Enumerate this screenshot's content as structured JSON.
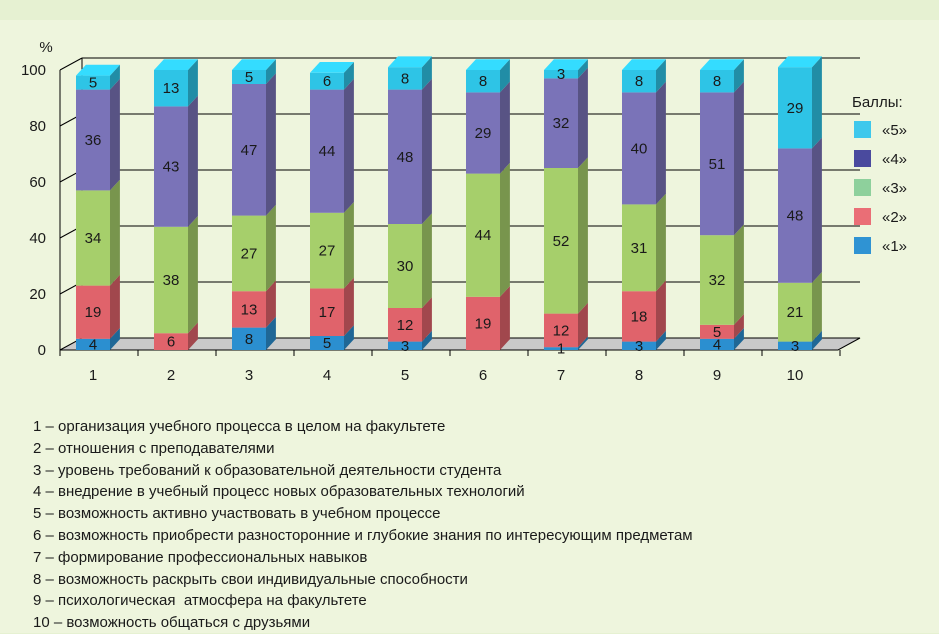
{
  "chart_data": {
    "type": "bar",
    "stacked": true,
    "y_unit_label": "%",
    "ylim": [
      0,
      100
    ],
    "y_ticks": [
      0,
      20,
      40,
      60,
      80,
      100
    ],
    "grid": true,
    "legend_position": "right",
    "categories": [
      "1",
      "2",
      "3",
      "4",
      "5",
      "6",
      "7",
      "8",
      "9",
      "10"
    ],
    "legend_title": "Баллы:",
    "series": [
      {
        "name": "«1»",
        "color": "#2b8fd0",
        "values": [
          4,
          0,
          8,
          5,
          3,
          0,
          1,
          3,
          4,
          3
        ]
      },
      {
        "name": "«2»",
        "color": "#e0636b",
        "values": [
          19,
          6,
          13,
          17,
          12,
          19,
          12,
          18,
          5,
          0
        ]
      },
      {
        "name": "«3»",
        "color": "#a6cf6b",
        "values": [
          34,
          38,
          27,
          27,
          30,
          44,
          52,
          31,
          32,
          21
        ]
      },
      {
        "name": "«4»",
        "color": "#7a73b8",
        "values": [
          36,
          43,
          47,
          44,
          48,
          29,
          32,
          40,
          51,
          48
        ]
      },
      {
        "name": "«5»",
        "color": "#2ec4e6",
        "values": [
          5,
          13,
          5,
          6,
          8,
          8,
          3,
          8,
          8,
          29
        ]
      }
    ],
    "legend_order": [
      4,
      3,
      2,
      1,
      0
    ],
    "legend_colors": [
      "#3ec8ec",
      "#4a4a9e",
      "#8ed09c",
      "#ea6e76",
      "#2f93d3"
    ]
  },
  "captions": [
    "1 – организация учебного процесса в целом на факультете",
    "2 – отношения с преподавателями",
    "3 – уровень требований к образовательной деятельности студента",
    "4 – внедрение в учебный процесс новых образовательных технологий",
    "5 – возможность активно участвовать в учебном процессе",
    "6 – возможность приобрести разносторонние и глубокие знания по интересующим предметам",
    "7 – формирование профессиональных навыков",
    "8 – возможность раскрыть свои индивидуальные способности",
    "9 – психологическая  атмосфера на факультете",
    "10 – возможность общаться с друзьями"
  ]
}
